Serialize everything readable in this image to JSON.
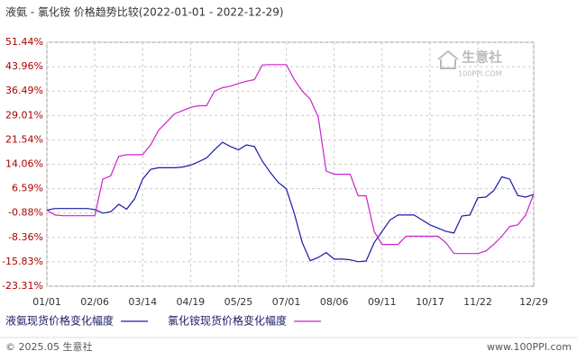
{
  "chart_data": {
    "type": "line",
    "title": "液氨 - 氯化铵 价格趋势比较(2022-01-01 - 2022-12-29)",
    "categories": [
      "01/01",
      null,
      null,
      null,
      null,
      null,
      "02/06",
      null,
      null,
      null,
      null,
      null,
      "03/14",
      null,
      null,
      null,
      null,
      null,
      "04/19",
      null,
      null,
      null,
      null,
      null,
      "05/25",
      null,
      null,
      null,
      null,
      null,
      "07/01",
      null,
      null,
      null,
      null,
      null,
      "08/06",
      null,
      null,
      null,
      null,
      null,
      "09/11",
      null,
      null,
      null,
      null,
      null,
      "10/17",
      null,
      null,
      null,
      null,
      null,
      "11/22",
      null,
      null,
      null,
      null,
      null,
      null,
      "12/29"
    ],
    "series": [
      {
        "name": "液氨现货价格变化幅度",
        "color": "#1a1aa6",
        "values": [
          0,
          0.5,
          0.5,
          0.5,
          0.5,
          0.5,
          0.2,
          -0.9,
          -0.5,
          1.8,
          0.3,
          3.5,
          9.5,
          12.5,
          13,
          13,
          13,
          13.2,
          13.8,
          14.8,
          16,
          18.5,
          20.8,
          19.5,
          18.5,
          20,
          19.5,
          15,
          11.5,
          8.5,
          6.5,
          -1,
          -10,
          -15.5,
          -14.5,
          -13,
          -15,
          -15,
          -15.2,
          -15.8,
          -15.6,
          -10,
          -6.5,
          -3,
          -1.5,
          -1.5,
          -1.5,
          -3,
          -4.5,
          -5.5,
          -6.5,
          -7,
          -1.8,
          -1.5,
          3.8,
          4,
          6,
          10.2,
          9.5,
          4.5,
          4,
          4.8
        ]
      },
      {
        "name": "氯化铵现货价格变化幅度",
        "color": "#cc22cc",
        "values": [
          0,
          -1.5,
          -1.7,
          -1.7,
          -1.7,
          -1.7,
          -1.7,
          9.5,
          10.5,
          16.5,
          17,
          17,
          17,
          20,
          24.5,
          27,
          29.5,
          30.5,
          31.5,
          32,
          32,
          36.5,
          37.5,
          38,
          38.8,
          39.5,
          40,
          44.5,
          44.6,
          44.6,
          44.6,
          40,
          36.5,
          34,
          28.5,
          12,
          11,
          11,
          11,
          4.4,
          4.4,
          -6.5,
          -10.5,
          -10.5,
          -10.5,
          -8,
          -8,
          -8,
          -8,
          -8,
          -10,
          -13.3,
          -13.3,
          -13.3,
          -13.3,
          -12.5,
          -10.5,
          -8,
          -5,
          -4.5,
          -1.5,
          5
        ]
      }
    ],
    "ylim": [
      -23.31,
      51.44
    ],
    "yticks": [
      {
        "value": 51.44,
        "label": "51.44%"
      },
      {
        "value": 43.96,
        "label": "43.96%"
      },
      {
        "value": 36.49,
        "label": "36.49%"
      },
      {
        "value": 29.01,
        "label": "29.01%"
      },
      {
        "value": 21.54,
        "label": "21.54%"
      },
      {
        "value": 14.06,
        "label": "14.06%"
      },
      {
        "value": 6.59,
        "label": "6.59%"
      },
      {
        "value": -0.88,
        "label": "-0.88%"
      },
      {
        "value": -8.36,
        "label": "-8.36%"
      },
      {
        "value": -15.83,
        "label": "-15.83%"
      },
      {
        "value": -23.31,
        "label": "-23.31%"
      }
    ],
    "grid": true,
    "watermark": "生意社",
    "watermark_sub": "100PPI.COM",
    "footer_left": "© 2025.05 生意社",
    "footer_right": "www.100PPI.com"
  }
}
